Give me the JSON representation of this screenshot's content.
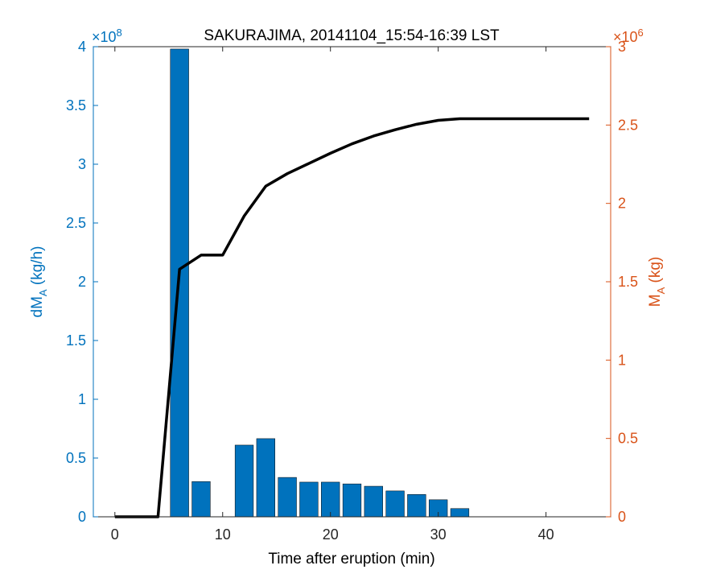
{
  "chart_data": {
    "type": "bar+line",
    "title": "SAKURAJIMA, 20141104_15:54-16:39 LST",
    "xlabel": "Time after eruption (min)",
    "xlim": [
      -2,
      46
    ],
    "xticks": [
      "0",
      "10",
      "20",
      "30",
      "40"
    ],
    "left_axis": {
      "label_main": "dM",
      "label_sub": "A",
      "label_unit": " (kg/h)",
      "exponent_prefix": "×10",
      "exponent": "8",
      "ylim": [
        0,
        4
      ],
      "ticks": [
        "0",
        "0.5",
        "1",
        "1.5",
        "2",
        "2.5",
        "3",
        "3.5",
        "4"
      ],
      "color": "#0072bd"
    },
    "right_axis": {
      "label_main": "M",
      "label_sub": "A",
      "label_unit": " (kg)",
      "exponent_prefix": "×10",
      "exponent": "6",
      "ylim": [
        0,
        3
      ],
      "ticks": [
        "0",
        "0.5",
        "1",
        "1.5",
        "2",
        "2.5",
        "3"
      ],
      "color": "#d95319"
    },
    "bars": {
      "color": "#0072bd",
      "x": [
        6,
        8,
        10,
        12,
        14,
        16,
        18,
        20,
        22,
        24,
        26,
        28,
        30,
        32
      ],
      "values": [
        3.98,
        0.3,
        0,
        0.61,
        0.665,
        0.335,
        0.295,
        0.295,
        0.28,
        0.26,
        0.22,
        0.19,
        0.145,
        0.07
      ]
    },
    "cumulative_line": {
      "color": "#000000",
      "x": [
        0,
        4,
        6,
        8,
        10,
        12,
        14,
        16,
        18,
        20,
        22,
        24,
        26,
        28,
        30,
        32,
        34,
        36,
        38,
        40,
        42,
        44
      ],
      "values": [
        0,
        0,
        1.58,
        1.67,
        1.67,
        1.92,
        2.11,
        2.19,
        2.255,
        2.32,
        2.38,
        2.43,
        2.47,
        2.505,
        2.53,
        2.54,
        2.54,
        2.54,
        2.54,
        2.54,
        2.54,
        2.54
      ]
    }
  }
}
